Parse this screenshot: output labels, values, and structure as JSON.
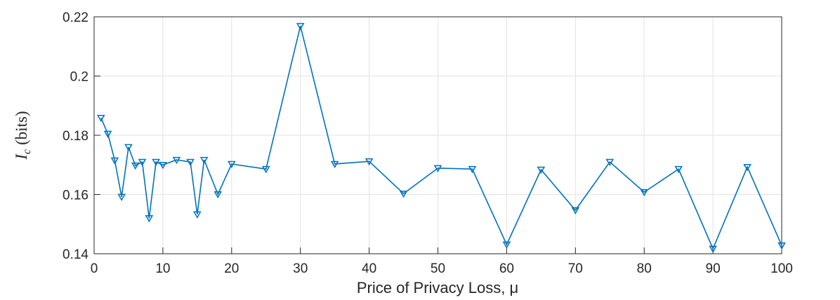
{
  "chart_data": {
    "type": "line",
    "xlabel": "Price of Privacy Loss, μ",
    "ylabel_symbol": "I",
    "ylabel_subscript": "c",
    "ylabel_unit": "(bits)",
    "x": [
      1,
      2,
      3,
      4,
      5,
      6,
      7,
      8,
      9,
      10,
      12,
      14,
      15,
      16,
      18,
      20,
      25,
      30,
      35,
      40,
      45,
      50,
      55,
      60,
      65,
      70,
      75,
      80,
      85,
      90,
      95,
      100
    ],
    "series": [
      {
        "color": "#0072bd",
        "marker": "triangle-down",
        "values": [
          0.1859,
          0.1805,
          0.1715,
          0.1592,
          0.176,
          0.1698,
          0.171,
          0.152,
          0.171,
          0.17,
          0.1717,
          0.171,
          0.1533,
          0.1717,
          0.1601,
          0.1703,
          0.1686,
          0.2169,
          0.1703,
          0.1712,
          0.1603,
          0.1689,
          0.1686,
          0.1431,
          0.1684,
          0.1547,
          0.171,
          0.1608,
          0.1686,
          0.1417,
          0.1693,
          0.1428
        ]
      }
    ],
    "xlim": [
      0,
      100
    ],
    "xticks": [
      0,
      10,
      20,
      30,
      40,
      50,
      60,
      70,
      80,
      90,
      100
    ],
    "ylim": [
      0.14,
      0.22
    ],
    "yticks": [
      0.14,
      0.16,
      0.18,
      0.2,
      0.22
    ],
    "grid": true
  }
}
